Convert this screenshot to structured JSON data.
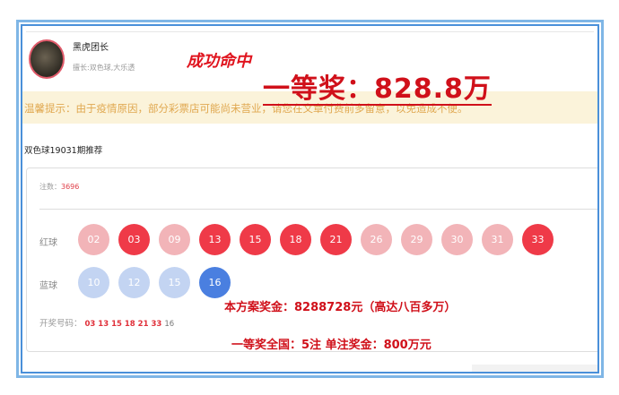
{
  "user": {
    "name": "黑虎团长",
    "tag": "擅长:双色球,大乐透"
  },
  "overlay": {
    "hit": "成功命中",
    "prize": "一等奖：828.8万",
    "bonus": "本方案奖金：8288728元（高达八百多万）",
    "national": "一等奖全国：5注   单注奖金：800万元"
  },
  "notice": "温馨提示：由于疫情原因，部分彩票店可能尚未营业，请您在文章付费前多留意，以免造成不便。",
  "issue_title": "双色球19031期推荐",
  "count": {
    "label": "注数：",
    "value": "3696"
  },
  "red": {
    "label": "红球",
    "balls": [
      {
        "n": "02",
        "hit": false
      },
      {
        "n": "03",
        "hit": true
      },
      {
        "n": "09",
        "hit": false
      },
      {
        "n": "13",
        "hit": true
      },
      {
        "n": "15",
        "hit": true
      },
      {
        "n": "18",
        "hit": true
      },
      {
        "n": "21",
        "hit": true
      },
      {
        "n": "26",
        "hit": false
      },
      {
        "n": "29",
        "hit": false
      },
      {
        "n": "30",
        "hit": false
      },
      {
        "n": "31",
        "hit": false
      },
      {
        "n": "33",
        "hit": true
      }
    ]
  },
  "blue": {
    "label": "蓝球",
    "balls": [
      {
        "n": "10",
        "hit": false
      },
      {
        "n": "12",
        "hit": false
      },
      {
        "n": "15",
        "hit": false
      },
      {
        "n": "16",
        "hit": true
      }
    ]
  },
  "draw": {
    "label": "开奖号码：",
    "red": "03 13 15 18 21 33",
    "blue": "16"
  },
  "colors": {
    "red_hit": "#ef3a48",
    "red_miss": "#f2b4b8",
    "blue_hit": "#4a7fe0",
    "blue_miss": "#c3d4f2"
  }
}
